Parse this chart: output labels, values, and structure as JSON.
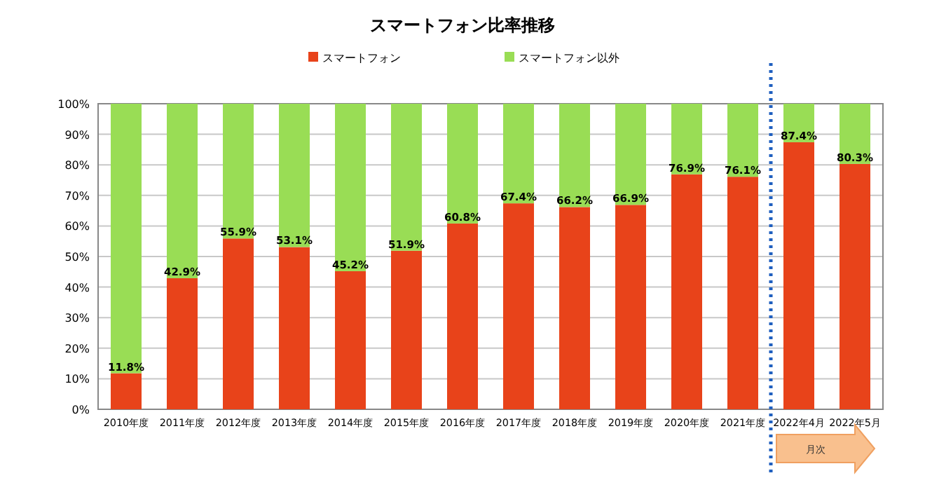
{
  "chart_data": {
    "type": "bar",
    "title": "スマートフォン比率推移",
    "stacked": true,
    "legend": "top",
    "grid": "y",
    "categories": [
      "2010年度",
      "2011年度",
      "2012年度",
      "2013年度",
      "2014年度",
      "2015年度",
      "2016年度",
      "2017年度",
      "2018年度",
      "2019年度",
      "2020年度",
      "2021年度",
      "2022年4月",
      "2022年5月"
    ],
    "series": [
      {
        "name": "スマートフォン",
        "color": "#e8431a",
        "values": [
          11.8,
          42.9,
          55.9,
          53.1,
          45.2,
          51.9,
          60.8,
          67.4,
          66.2,
          66.9,
          76.9,
          76.1,
          87.4,
          80.3
        ],
        "value_labels": [
          "11.8%",
          "42.9%",
          "55.9%",
          "53.1%",
          "45.2%",
          "51.9%",
          "60.8%",
          "67.4%",
          "66.2%",
          "66.9%",
          "76.9%",
          "76.1%",
          "87.4%",
          "80.3%"
        ]
      },
      {
        "name": "スマートフォン以外",
        "color": "#99dd55",
        "values": [
          88.2,
          57.1,
          44.1,
          46.9,
          54.8,
          48.1,
          39.2,
          32.6,
          33.8,
          33.1,
          23.1,
          23.9,
          12.6,
          19.7
        ]
      }
    ],
    "ylim": [
      0,
      100
    ],
    "yticks": [
      {
        "value": 0,
        "label": "0%"
      },
      {
        "value": 10,
        "label": "10%"
      },
      {
        "value": 20,
        "label": "20%"
      },
      {
        "value": 30,
        "label": "30%"
      },
      {
        "value": 40,
        "label": "40%"
      },
      {
        "value": 50,
        "label": "50%"
      },
      {
        "value": 60,
        "label": "60%"
      },
      {
        "value": 70,
        "label": "70%"
      },
      {
        "value": 80,
        "label": "80%"
      },
      {
        "value": 90,
        "label": "90%"
      },
      {
        "value": 100,
        "label": "100%"
      }
    ],
    "ref_lines": [
      {
        "axis": "x",
        "value": "2022年4月",
        "color": "#1f5fbf",
        "line_style": "dotted"
      }
    ],
    "annotations": [
      "月次"
    ]
  }
}
